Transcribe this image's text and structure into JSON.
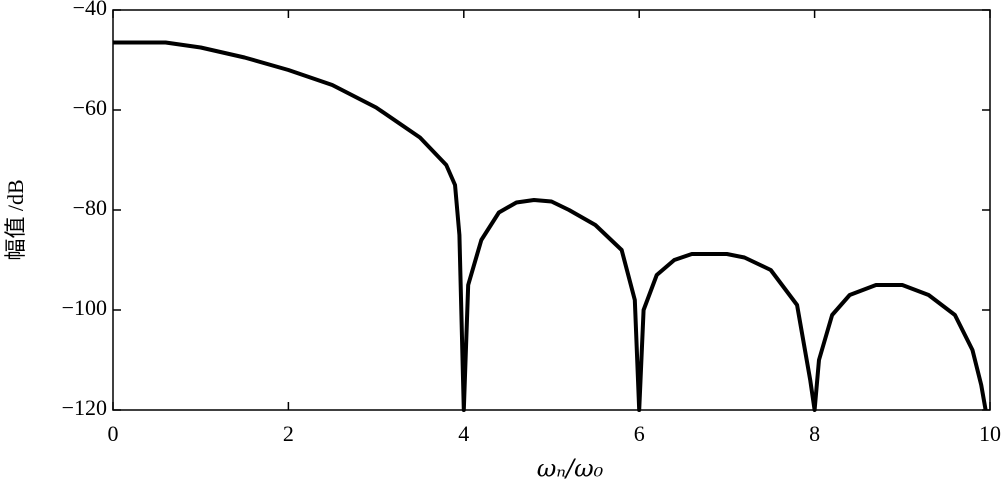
{
  "chart_data": {
    "type": "line",
    "x_label": "ωₙ/ω₀",
    "y_label": "幅值 /dB",
    "x": [
      0,
      0.6,
      1,
      1.5,
      2,
      2.5,
      3,
      3.5,
      3.8,
      3.9,
      3.95,
      4,
      4.05,
      4.2,
      4.4,
      4.6,
      4.8,
      5,
      5.2,
      5.5,
      5.8,
      5.95,
      6,
      6.05,
      6.2,
      6.4,
      6.6,
      7,
      7.2,
      7.5,
      7.8,
      7.95,
      8,
      8.05,
      8.2,
      8.4,
      8.7,
      9,
      9.3,
      9.6,
      9.8,
      9.9,
      9.95
    ],
    "series": [
      {
        "color": "#000000",
        "values": [
          -46.5,
          -46.5,
          -47.5,
          -49.5,
          -52,
          -55,
          -59.5,
          -65.5,
          -71,
          -75,
          -85,
          -120,
          -95,
          -86,
          -80.5,
          -78.5,
          -78,
          -78.3,
          -80,
          -83,
          -88,
          -98,
          -120,
          -100,
          -93,
          -90,
          -88.8,
          -88.8,
          -89.5,
          -92,
          -99,
          -114,
          -120,
          -110,
          -101,
          -97,
          -95,
          -95,
          -97,
          -101,
          -108,
          -115,
          -120
        ]
      }
    ],
    "xlim": [
      0,
      10
    ],
    "ylim": [
      -120,
      -40
    ],
    "xticks": [
      0,
      2,
      4,
      6,
      8,
      10
    ],
    "yticks": [
      {
        "value": -40,
        "label": "−40"
      },
      {
        "value": -60,
        "label": "−60"
      },
      {
        "value": -80,
        "label": "−80"
      },
      {
        "value": -100,
        "label": "−100"
      },
      {
        "value": -120,
        "label": "−120"
      }
    ]
  }
}
